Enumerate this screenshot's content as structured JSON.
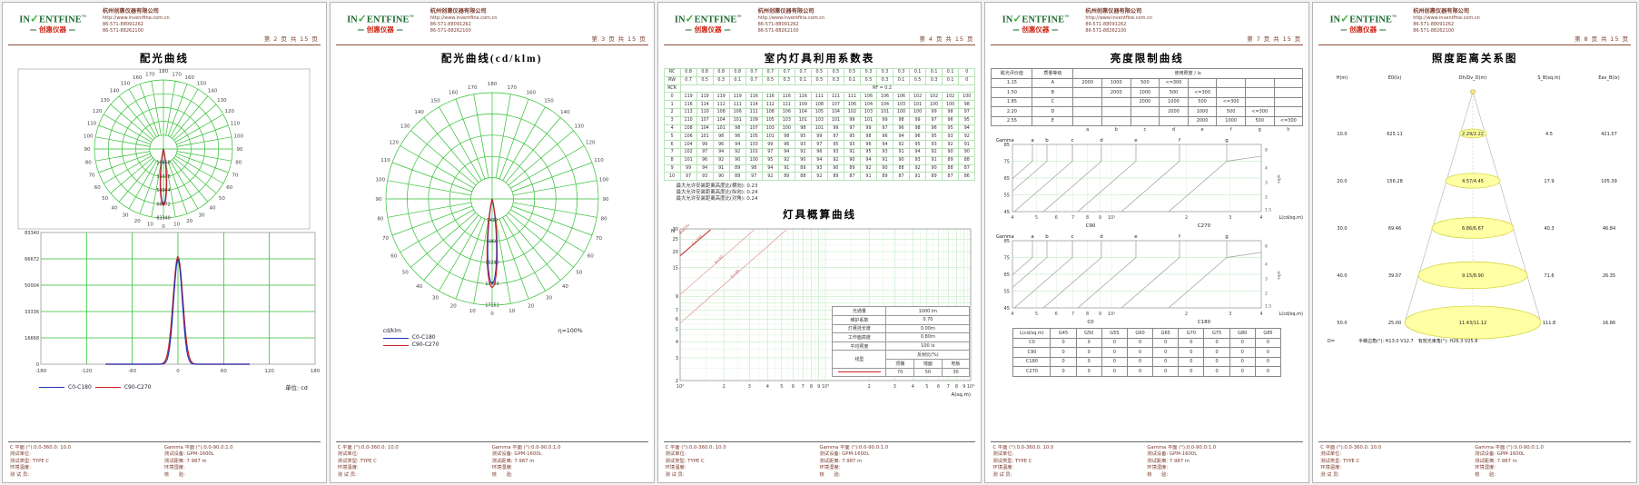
{
  "company": {
    "brand": {
      "p1": "IN",
      "check": "✓",
      "p2": "ENTFINE",
      "tm": "™",
      "dash": "—",
      "cn": "创惠仪器"
    },
    "name": "杭州创惠仪器有限公司",
    "url": "http://www.inventfine.com.cn",
    "phone1": "86-571-88091262",
    "phone2": "86-571-88262100"
  },
  "footer": {
    "left": [
      "C 平面 (°):0.0-360.0: 10.0",
      "测试单位:",
      "测试类型: TYPE C",
      "环境温度:",
      "测 试 员:"
    ],
    "right": [
      "Gamma 平面 (°):0.0-90.0:1.0",
      "测试设备: GPM-1600L",
      "测试距离: 7.987 m",
      "环境湿度:",
      "核　　验:"
    ]
  },
  "pages": [
    {
      "page_label": "第 2 页  共 15 页",
      "title": "配光曲线",
      "legend": {
        "s1": "C0-C180",
        "s2": "C90-C270",
        "unit": "单位: cd"
      }
    },
    {
      "page_label": "第 3 页  共 15 页",
      "title": "配光曲线(cd/klm)",
      "legend": {
        "unit": "cd/klm",
        "s1": "C0-C180",
        "s2": "C90-C270",
        "eff": "η=100%"
      }
    },
    {
      "page_label": "第 4 页  共 15 页",
      "title": "室内灯具利用系数表",
      "chart2_title": "灯具概算曲线",
      "notes": [
        "最大允许安装距离高度比(横向): 0.23",
        "最大允许安装距离高度比(纵向): 0.24",
        "最大允许安装距离高度比(对角): 0.24"
      ]
    },
    {
      "page_label": "第 7 页  共 15 页",
      "title": "亮度限制曲线"
    },
    {
      "page_label": "第 8 页  共 15 页",
      "title": "照度距离关系图"
    }
  ],
  "colors": {
    "grid_green": "#2ebe2e",
    "curve_blue": "#2233bb",
    "curve_red": "#cc2222",
    "brand_green": "#1c6b2f",
    "brand_red": "#cc2211",
    "meta": "#7a3a2c",
    "cone_yellow": "#ffff99",
    "table_green": "#b9e4b9",
    "minor_grid": "#e0f4e0",
    "major_grid": "#b7e6b7"
  },
  "chart_data": [
    {
      "id": "distribution-polar-cd",
      "type": "polar",
      "title": "配光曲线",
      "unit": "cd",
      "angle_ticks": [
        0,
        10,
        20,
        30,
        40,
        50,
        60,
        70,
        80,
        90,
        100,
        110,
        120,
        130,
        140,
        150,
        160,
        170,
        180
      ],
      "r_ticks": [
        16668,
        33336,
        50004,
        66672,
        83340
      ],
      "series": [
        {
          "name": "C0-C180",
          "color": "#2233bb",
          "peak": 66500,
          "half_width_deg": 7
        },
        {
          "name": "C90-C270",
          "color": "#cc2222",
          "peak": 68200,
          "half_width_deg": 7.8
        }
      ]
    },
    {
      "id": "distribution-cartesian-cd",
      "type": "line",
      "unit": "cd",
      "x_ticks": [
        -180,
        -120,
        -60,
        0,
        60,
        120,
        180
      ],
      "y_ticks": [
        0,
        16668,
        33336,
        50004,
        66672,
        83340
      ],
      "series": [
        {
          "name": "C0-C180",
          "color": "#2233bb",
          "peak": 66500,
          "half_width_deg": 7
        },
        {
          "name": "C90-C270",
          "color": "#cc2222",
          "peak": 68200,
          "half_width_deg": 7.8
        }
      ]
    },
    {
      "id": "distribution-polar-cdklm",
      "type": "polar",
      "title": "配光曲线(cd/klm)",
      "unit": "cd/klm",
      "efficiency": "η=100%",
      "angle_ticks": [
        0,
        10,
        20,
        30,
        40,
        50,
        60,
        70,
        80,
        90,
        100,
        110,
        120,
        130,
        140,
        150,
        160,
        170,
        180
      ],
      "r_ticks": [
        3430,
        6860,
        10290,
        13720,
        17151
      ],
      "series": [
        {
          "name": "C0-C180",
          "color": "#2233bb",
          "peak": 13700,
          "half_width_deg": 7
        },
        {
          "name": "C90-C270",
          "color": "#cc2222",
          "peak": 14300,
          "half_width_deg": 7.8
        }
      ]
    },
    {
      "id": "utilization-table",
      "type": "table",
      "title": "室内灯具利用系数表",
      "rc_label": "RC",
      "rw_label": "RW",
      "rcr_label": "RCR",
      "rf_label": "RF = 0.2",
      "rc": [
        "0.8",
        "0.8",
        "0.8",
        "0.8",
        "0.7",
        "0.7",
        "0.7",
        "0.7",
        "0.5",
        "0.5",
        "0.5",
        "0.3",
        "0.3",
        "0.3",
        "0.1",
        "0.1",
        "0.1",
        "0"
      ],
      "rw": [
        "0.7",
        "0.5",
        "0.3",
        "0.1",
        "0.7",
        "0.5",
        "0.3",
        "0.1",
        "0.5",
        "0.3",
        "0.1",
        "0.5",
        "0.3",
        "0.1",
        "0.5",
        "0.3",
        "0.1",
        "0"
      ],
      "rows": [
        {
          "rcr": "0",
          "values": [
            119,
            119,
            119,
            119,
            116,
            116,
            116,
            116,
            111,
            111,
            111,
            106,
            106,
            106,
            102,
            102,
            102,
            100
          ]
        },
        {
          "rcr": "1",
          "values": [
            116,
            114,
            112,
            111,
            114,
            112,
            111,
            109,
            108,
            107,
            106,
            104,
            104,
            103,
            101,
            100,
            100,
            98
          ]
        },
        {
          "rcr": "2",
          "values": [
            113,
            110,
            108,
            106,
            111,
            108,
            106,
            104,
            105,
            104,
            102,
            103,
            101,
            100,
            100,
            99,
            98,
            97
          ]
        },
        {
          "rcr": "3",
          "values": [
            110,
            107,
            104,
            101,
            109,
            105,
            103,
            101,
            103,
            101,
            99,
            101,
            99,
            98,
            99,
            97,
            96,
            95
          ]
        },
        {
          "rcr": "4",
          "values": [
            108,
            104,
            101,
            98,
            107,
            103,
            100,
            98,
            101,
            99,
            97,
            99,
            97,
            96,
            98,
            96,
            95,
            94
          ]
        },
        {
          "rcr": "5",
          "values": [
            106,
            101,
            98,
            96,
            105,
            101,
            98,
            95,
            99,
            97,
            95,
            98,
            96,
            94,
            96,
            95,
            93,
            92
          ]
        },
        {
          "rcr": "6",
          "values": [
            104,
            99,
            96,
            94,
            103,
            99,
            96,
            93,
            97,
            95,
            93,
            96,
            94,
            92,
            95,
            93,
            92,
            91
          ]
        },
        {
          "rcr": "7",
          "values": [
            102,
            97,
            94,
            92,
            101,
            97,
            94,
            92,
            96,
            93,
            91,
            95,
            93,
            91,
            94,
            92,
            90,
            90
          ]
        },
        {
          "rcr": "8",
          "values": [
            101,
            96,
            92,
            90,
            100,
            95,
            92,
            90,
            94,
            92,
            90,
            94,
            91,
            90,
            93,
            91,
            89,
            88
          ]
        },
        {
          "rcr": "9",
          "values": [
            99,
            94,
            91,
            89,
            98,
            94,
            91,
            89,
            93,
            90,
            89,
            92,
            90,
            88,
            92,
            90,
            88,
            87
          ]
        },
        {
          "rcr": "10",
          "values": [
            97,
            93,
            90,
            88,
            97,
            92,
            89,
            88,
            92,
            89,
            87,
            91,
            89,
            87,
            91,
            89,
            87,
            86
          ]
        }
      ]
    },
    {
      "id": "estimation-curve",
      "type": "line-log",
      "title": "灯具概算曲线",
      "x_label": "A(sq.m)",
      "y_label": "N",
      "y_ticks": [
        30,
        25,
        20,
        15,
        9,
        7,
        6,
        5,
        4,
        3,
        2
      ],
      "x_tick_labels": [
        "10²",
        "2",
        "3",
        "4",
        "5",
        "6",
        "7",
        "8",
        "9",
        "10³",
        "2",
        "3",
        "4",
        "5",
        "6",
        "7",
        "8",
        "9",
        "10⁴"
      ],
      "iso_lines": [
        {
          "label": "E=150",
          "value": 150
        },
        {
          "label": "E=100",
          "value": 100
        },
        {
          "label": "E=50",
          "value": 50
        },
        {
          "label": "E=30",
          "value": 30
        }
      ],
      "params": [
        [
          "光通量",
          "1000 lm"
        ],
        [
          "维护系数",
          "0.70"
        ],
        [
          "灯悬挂长度",
          "0.00m"
        ],
        [
          "工作面高度",
          "0.80m"
        ],
        [
          "平均照度",
          "100 lx"
        ]
      ],
      "reflect": {
        "label": "线型",
        "header": "反射比(%)",
        "cols": [
          "顶棚",
          "墙面",
          "地板"
        ],
        "values": [
          "70",
          "50",
          "30"
        ]
      }
    },
    {
      "id": "luminance-limit-table",
      "type": "table",
      "title": "亮度限制曲线",
      "col1": "眩光评价值",
      "col2": "质量等级",
      "col3": "使用照度 / lx",
      "rows": [
        {
          "glare": "1.15",
          "grade": "A",
          "cells": [
            "2000",
            "1000",
            "500",
            "<=300",
            "",
            "",
            "",
            ""
          ]
        },
        {
          "glare": "1.50",
          "grade": "B",
          "cells": [
            "",
            "2000",
            "1000",
            "500",
            "<=300",
            "",
            "",
            ""
          ]
        },
        {
          "glare": "1.85",
          "grade": "C",
          "cells": [
            "",
            "",
            "2000",
            "1000",
            "500",
            "<=300",
            "",
            ""
          ]
        },
        {
          "glare": "2.20",
          "grade": "D",
          "cells": [
            "",
            "",
            "",
            "2000",
            "1000",
            "500",
            "<=300",
            ""
          ]
        },
        {
          "glare": "2.55",
          "grade": "E",
          "cells": [
            "",
            "",
            "",
            "",
            "2000",
            "1000",
            "500",
            "<=300"
          ]
        }
      ],
      "letters": [
        "a",
        "b",
        "c",
        "d",
        "e",
        "f",
        "g",
        "h"
      ]
    },
    {
      "id": "soellner-c90-c270",
      "type": "line-log",
      "y_label": "Gamma",
      "y_ticks": [
        85,
        75,
        65,
        55,
        45
      ],
      "letters": [
        "a",
        "b",
        "c",
        "d",
        "e",
        "f",
        "g"
      ],
      "x_tick_labels": [
        "4",
        "5",
        "6",
        "7",
        "8",
        "9",
        "10³",
        "2",
        "3",
        "4"
      ],
      "plane_labels": [
        "C90",
        "C270"
      ],
      "x_label": "L(cd/sq.m)",
      "right_ticks": [
        "8",
        "4",
        "3",
        "2",
        "1.5"
      ],
      "right_label": "a/hs"
    },
    {
      "id": "soellner-c0-c180",
      "type": "line-log",
      "y_label": "Gamma",
      "y_ticks": [
        85,
        75,
        65,
        55,
        45
      ],
      "letters": [
        "a",
        "b",
        "c",
        "d",
        "e",
        "f",
        "g"
      ],
      "x_tick_labels": [
        "4",
        "5",
        "6",
        "7",
        "8",
        "9",
        "10³",
        "2",
        "3",
        "4"
      ],
      "plane_labels": [
        "C0",
        "C180"
      ],
      "x_label": "L(cd/sq.m)",
      "right_ticks": [
        "8",
        "4",
        "3",
        "2",
        "1.5"
      ],
      "right_label": "a/hs"
    },
    {
      "id": "luminance-values-table",
      "type": "table",
      "header": [
        "L(cd/sq.m)",
        "G45",
        "G50",
        "G55",
        "G60",
        "G65",
        "G70",
        "G75",
        "G80",
        "G85"
      ],
      "rows": [
        {
          "name": "C0",
          "values": [
            "0",
            "0",
            "0",
            "0",
            "0",
            "0",
            "0",
            "0",
            "0"
          ]
        },
        {
          "name": "C90",
          "values": [
            "0",
            "0",
            "0",
            "0",
            "0",
            "0",
            "0",
            "0",
            "0"
          ]
        },
        {
          "name": "C180",
          "values": [
            "0",
            "0",
            "0",
            "0",
            "0",
            "0",
            "0",
            "0",
            "0"
          ]
        },
        {
          "name": "C270",
          "values": [
            "0",
            "0",
            "0",
            "0",
            "0",
            "0",
            "0",
            "0",
            "0"
          ]
        }
      ]
    },
    {
      "id": "illuminance-distance",
      "type": "diagram",
      "title": "照度距离关系图",
      "columns": [
        "H(m)",
        "E0(lx)",
        "Dh/Dv_D(m)",
        "S_B(sq.m)",
        "Eav_B(lx)"
      ],
      "rows": [
        [
          "10.0",
          "625.11",
          "2.29/2.22",
          "4.5",
          "421.57"
        ],
        [
          "20.0",
          "156.28",
          "4.57/4.45",
          "17.9",
          "105.39"
        ],
        [
          "30.0",
          "69.46",
          "6.86/6.67",
          "40.3",
          "46.84"
        ],
        [
          "40.0",
          "39.07",
          "9.15/8.90",
          "71.6",
          "26.35"
        ],
        [
          "50.0",
          "25.00",
          "11.43/11.12",
          "111.8",
          "16.86"
        ]
      ],
      "d_label": "D=",
      "beam_note": "半峰边角(°): H13.0 V12.7　有效光束角(°): H26.3 V25.8"
    }
  ]
}
